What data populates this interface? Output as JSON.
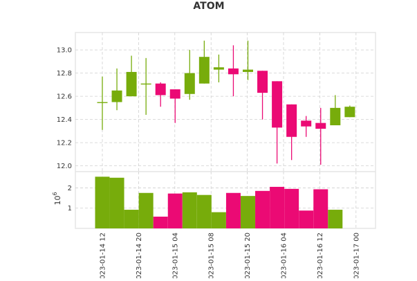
{
  "chart_data": {
    "type": "candlestick",
    "title": "ATOM",
    "colors": {
      "up": "#77ac0b",
      "down": "#eb0a74",
      "grid": "#cfcfcf",
      "frame": "#e6e6e6",
      "text": "#333333"
    },
    "x_ticks": [
      "023-01-14 12",
      "023-01-14 20",
      "023-01-15 04",
      "023-01-15 08",
      "023-01-15 20",
      "023-01-16 04",
      "023-01-16 12",
      "023-01-17 00"
    ],
    "price_axis": {
      "ylim": [
        11.95,
        13.15
      ],
      "ticks": [
        "12.0",
        "12.2",
        "12.4",
        "12.6",
        "12.8",
        "13.0"
      ],
      "grid": true
    },
    "volume_axis": {
      "ylabel_base": "10",
      "ylabel_exp": "6",
      "ylim": [
        0,
        2.8
      ],
      "ticks": [
        "1",
        "2"
      ],
      "grid": true
    },
    "candles": [
      {
        "open": 12.55,
        "high": 12.77,
        "low": 12.31,
        "close": 12.55,
        "volume": 2.55
      },
      {
        "open": 12.55,
        "high": 12.84,
        "low": 12.48,
        "close": 12.65,
        "volume": 2.5
      },
      {
        "open": 12.6,
        "high": 12.95,
        "low": 12.6,
        "close": 12.81,
        "volume": 0.92
      },
      {
        "open": 12.71,
        "high": 12.93,
        "low": 12.44,
        "close": 12.71,
        "volume": 1.75
      },
      {
        "open": 12.71,
        "high": 12.72,
        "low": 12.51,
        "close": 12.61,
        "volume": 0.58
      },
      {
        "open": 12.66,
        "high": 12.66,
        "low": 12.37,
        "close": 12.58,
        "volume": 1.72
      },
      {
        "open": 12.62,
        "high": 13.0,
        "low": 12.57,
        "close": 12.8,
        "volume": 1.78
      },
      {
        "open": 12.71,
        "high": 13.08,
        "low": 12.71,
        "close": 12.94,
        "volume": 1.65
      },
      {
        "open": 12.83,
        "high": 12.96,
        "low": 12.72,
        "close": 12.85,
        "volume": 0.8
      },
      {
        "open": 12.84,
        "high": 13.04,
        "low": 12.6,
        "close": 12.79,
        "volume": 1.75
      },
      {
        "open": 12.81,
        "high": 13.08,
        "low": 12.74,
        "close": 12.83,
        "volume": 1.6
      },
      {
        "open": 12.82,
        "high": 12.82,
        "low": 12.4,
        "close": 12.63,
        "volume": 1.85
      },
      {
        "open": 12.73,
        "high": 12.73,
        "low": 12.02,
        "close": 12.33,
        "volume": 2.05
      },
      {
        "open": 12.53,
        "high": 12.53,
        "low": 12.05,
        "close": 12.25,
        "volume": 1.95
      },
      {
        "open": 12.39,
        "high": 12.43,
        "low": 12.25,
        "close": 12.34,
        "volume": 0.88
      },
      {
        "open": 12.37,
        "high": 12.5,
        "low": 12.01,
        "close": 12.32,
        "volume": 1.93
      },
      {
        "open": 12.35,
        "high": 12.61,
        "low": 12.35,
        "close": 12.5,
        "volume": 0.92
      },
      {
        "open": 12.42,
        "high": 12.52,
        "low": 12.42,
        "close": 12.51,
        "volume": 0
      }
    ]
  }
}
